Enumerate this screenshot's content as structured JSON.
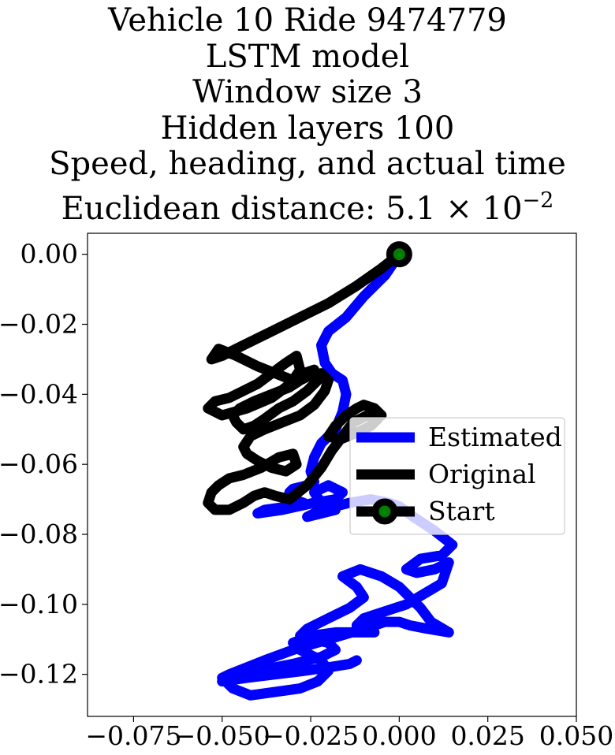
{
  "title_lines": [
    "Vehicle 10 Ride 9474779",
    "LSTM model",
    "Window size 3",
    "Hidden layers 100",
    "Speed, heading, and actual time",
    "Euclidean distance: 5.1 × 10",
    "−2"
  ],
  "chart_data": {
    "type": "line",
    "title": "Vehicle 10 Ride 9474779 / LSTM model / Window size 3 / Hidden layers 100 / Speed, heading, and actual time / Euclidean distance: 5.1 × 10^−2",
    "xlim": [
      -0.088,
      0.05
    ],
    "ylim": [
      -0.132,
      0.006
    ],
    "x_ticks": [
      -0.075,
      -0.05,
      -0.025,
      0.0,
      0.025,
      0.05
    ],
    "x_tick_labels": [
      "−0.075",
      "−0.050",
      "−0.025",
      "0.000",
      "0.025",
      "0.050"
    ],
    "y_ticks": [
      0.0,
      -0.02,
      -0.04,
      -0.06,
      -0.08,
      -0.1,
      -0.12
    ],
    "y_tick_labels": [
      "0.00",
      "−0.02",
      "−0.04",
      "−0.06",
      "−0.08",
      "−0.10",
      "−0.12"
    ],
    "grid": false,
    "legend_position": "center-right",
    "series": [
      {
        "name": "Estimated",
        "color": "#0000ff",
        "x": [
          0.0,
          -0.004,
          -0.01,
          -0.015,
          -0.02,
          -0.022,
          -0.021,
          -0.019,
          -0.016,
          -0.015,
          -0.016,
          -0.018,
          -0.022,
          -0.024,
          -0.025,
          -0.024,
          -0.026,
          -0.03,
          -0.031,
          -0.03,
          -0.027,
          -0.031,
          -0.038,
          -0.04,
          -0.033,
          -0.024,
          -0.018,
          -0.016,
          -0.02,
          -0.024,
          -0.022,
          -0.018,
          -0.022,
          -0.026,
          -0.022,
          -0.014,
          -0.008,
          -0.003,
          0.0,
          0.004,
          0.01,
          0.015,
          0.012,
          0.006,
          0.002,
          0.005,
          0.01,
          0.014,
          0.012,
          0.007,
          0.002,
          -0.004,
          -0.01,
          -0.012,
          -0.01,
          -0.007,
          -0.018,
          -0.025,
          -0.03,
          -0.028,
          -0.022,
          -0.02,
          -0.023,
          -0.028,
          -0.035,
          -0.042,
          -0.047,
          -0.05,
          -0.048,
          -0.04,
          -0.03,
          -0.022,
          -0.018,
          -0.02,
          -0.024,
          -0.028,
          -0.026,
          -0.02,
          -0.014,
          -0.01,
          -0.012,
          -0.016,
          -0.011,
          -0.005,
          0.0,
          0.003,
          0.006,
          0.009,
          0.014,
          0.008,
          0.003,
          0.0,
          -0.004,
          -0.01,
          -0.02,
          -0.03,
          -0.038,
          -0.043,
          -0.048,
          -0.05,
          -0.043,
          -0.035,
          -0.027,
          -0.02,
          -0.014,
          -0.012
        ],
        "y": [
          0.0,
          -0.006,
          -0.012,
          -0.018,
          -0.022,
          -0.026,
          -0.031,
          -0.034,
          -0.036,
          -0.04,
          -0.045,
          -0.05,
          -0.054,
          -0.058,
          -0.062,
          -0.065,
          -0.066,
          -0.067,
          -0.068,
          -0.07,
          -0.071,
          -0.072,
          -0.073,
          -0.074,
          -0.073,
          -0.071,
          -0.07,
          -0.068,
          -0.066,
          -0.068,
          -0.071,
          -0.073,
          -0.074,
          -0.075,
          -0.073,
          -0.071,
          -0.07,
          -0.071,
          -0.072,
          -0.075,
          -0.079,
          -0.083,
          -0.086,
          -0.087,
          -0.09,
          -0.091,
          -0.09,
          -0.088,
          -0.094,
          -0.097,
          -0.1,
          -0.102,
          -0.104,
          -0.106,
          -0.107,
          -0.108,
          -0.108,
          -0.109,
          -0.111,
          -0.113,
          -0.116,
          -0.119,
          -0.122,
          -0.124,
          -0.125,
          -0.126,
          -0.124,
          -0.121,
          -0.12,
          -0.119,
          -0.117,
          -0.115,
          -0.113,
          -0.111,
          -0.11,
          -0.109,
          -0.107,
          -0.104,
          -0.101,
          -0.098,
          -0.095,
          -0.092,
          -0.09,
          -0.092,
          -0.095,
          -0.098,
          -0.101,
          -0.105,
          -0.108,
          -0.107,
          -0.106,
          -0.105,
          -0.105,
          -0.107,
          -0.11,
          -0.113,
          -0.116,
          -0.118,
          -0.12,
          -0.122,
          -0.121,
          -0.12,
          -0.119,
          -0.118,
          -0.117,
          -0.116
        ]
      },
      {
        "name": "Original",
        "color": "#000000",
        "x": [
          0.0,
          -0.005,
          -0.012,
          -0.02,
          -0.028,
          -0.036,
          -0.044,
          -0.05,
          -0.053,
          -0.051,
          -0.046,
          -0.04,
          -0.035,
          -0.03,
          -0.028,
          -0.029,
          -0.032,
          -0.036,
          -0.04,
          -0.044,
          -0.048,
          -0.052,
          -0.054,
          -0.05,
          -0.043,
          -0.036,
          -0.032,
          -0.03,
          -0.027,
          -0.024,
          -0.023,
          -0.026,
          -0.03,
          -0.034,
          -0.038,
          -0.041,
          -0.044,
          -0.046,
          -0.047,
          -0.045,
          -0.041,
          -0.036,
          -0.031,
          -0.028,
          -0.026,
          -0.022,
          -0.02,
          -0.021,
          -0.024,
          -0.028,
          -0.033,
          -0.038,
          -0.042,
          -0.044,
          -0.043,
          -0.04,
          -0.036,
          -0.032,
          -0.029,
          -0.03,
          -0.034,
          -0.039,
          -0.044,
          -0.048,
          -0.051,
          -0.053,
          -0.054,
          -0.052,
          -0.048,
          -0.044,
          -0.041,
          -0.038,
          -0.035,
          -0.031,
          -0.026,
          -0.022,
          -0.019,
          -0.016,
          -0.013,
          -0.009,
          -0.006,
          -0.008,
          -0.012,
          -0.017,
          -0.02,
          -0.018,
          -0.015,
          -0.012,
          -0.01,
          -0.007,
          -0.005
        ],
        "y": [
          0.0,
          -0.004,
          -0.009,
          -0.014,
          -0.018,
          -0.022,
          -0.026,
          -0.029,
          -0.03,
          -0.027,
          -0.029,
          -0.032,
          -0.034,
          -0.036,
          -0.033,
          -0.029,
          -0.031,
          -0.034,
          -0.037,
          -0.039,
          -0.041,
          -0.042,
          -0.044,
          -0.046,
          -0.044,
          -0.041,
          -0.038,
          -0.036,
          -0.034,
          -0.033,
          -0.036,
          -0.039,
          -0.042,
          -0.044,
          -0.047,
          -0.049,
          -0.05,
          -0.048,
          -0.046,
          -0.044,
          -0.042,
          -0.04,
          -0.038,
          -0.036,
          -0.035,
          -0.034,
          -0.036,
          -0.039,
          -0.043,
          -0.046,
          -0.048,
          -0.05,
          -0.052,
          -0.055,
          -0.057,
          -0.059,
          -0.061,
          -0.062,
          -0.06,
          -0.057,
          -0.058,
          -0.061,
          -0.063,
          -0.064,
          -0.066,
          -0.068,
          -0.071,
          -0.073,
          -0.073,
          -0.071,
          -0.069,
          -0.068,
          -0.069,
          -0.07,
          -0.066,
          -0.061,
          -0.056,
          -0.052,
          -0.048,
          -0.046,
          -0.047,
          -0.049,
          -0.051,
          -0.053,
          -0.052,
          -0.049,
          -0.046,
          -0.044,
          -0.043,
          -0.044,
          -0.046
        ]
      }
    ],
    "legend": [
      {
        "label": "Estimated",
        "color": "#0000ff",
        "marker": false
      },
      {
        "label": "Original",
        "color": "#000000",
        "marker": false
      },
      {
        "label": "Start",
        "color": "#000000",
        "marker": true,
        "marker_color": "#008000"
      }
    ],
    "start_point": {
      "name": "Start",
      "x": 0.0,
      "y": 0.0,
      "edge_color": "#000000",
      "face_color": "#008000"
    }
  }
}
